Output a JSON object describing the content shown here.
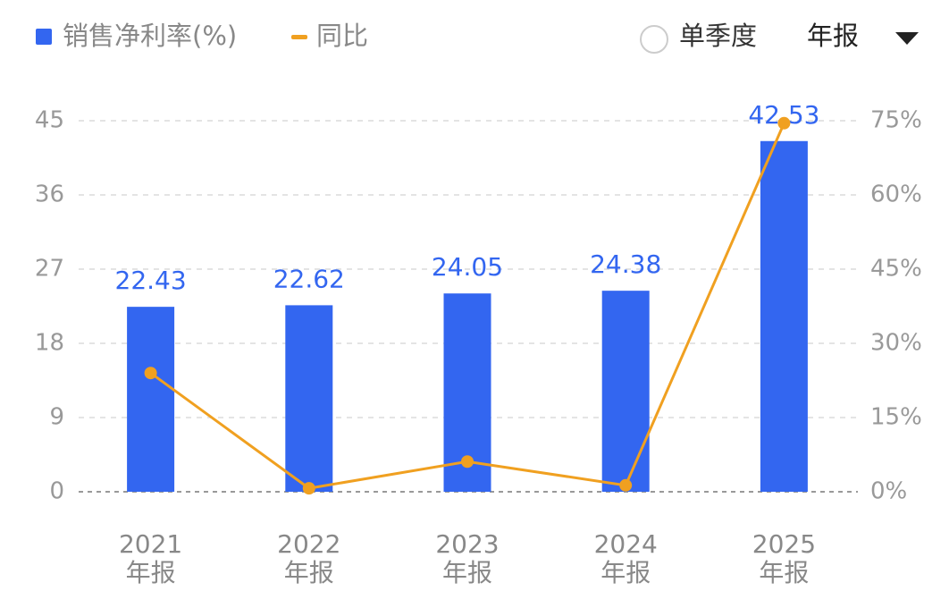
{
  "chart_data": {
    "type": "bar-line",
    "categories": [
      [
        "2021",
        "年报"
      ],
      [
        "2022",
        "年报"
      ],
      [
        "2023",
        "年报"
      ],
      [
        "2024",
        "年报"
      ],
      [
        "2025",
        "年报"
      ]
    ],
    "series": [
      {
        "name": "销售净利率(%)",
        "color": "#3366f0",
        "type": "bar",
        "values": [
          22.43,
          22.62,
          24.05,
          24.38,
          42.53
        ]
      },
      {
        "name": "同比",
        "color": "#f0a020",
        "type": "line",
        "axis": "y2",
        "values": [
          24.0,
          0.7,
          6.1,
          1.3,
          74.5
        ]
      }
    ],
    "ylim": [
      0,
      45
    ],
    "yticks": [
      0,
      9,
      18,
      27,
      36,
      45
    ],
    "y2lim": [
      0,
      75
    ],
    "y2ticks": [
      {
        "value": 0,
        "label": "0%"
      },
      {
        "value": 15,
        "label": "15%"
      },
      {
        "value": 30,
        "label": "30%"
      },
      {
        "value": 45,
        "label": "45%"
      },
      {
        "value": 60,
        "label": "60%"
      },
      {
        "value": 75,
        "label": "75%"
      }
    ],
    "grid": true
  },
  "controls": {
    "quarter_toggle": "单季度",
    "period": "年报"
  }
}
